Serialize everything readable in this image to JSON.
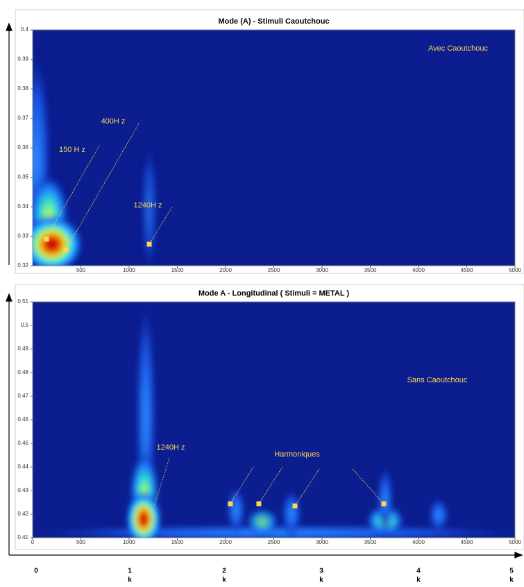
{
  "chart_data": [
    {
      "type": "heatmap",
      "title": "Mode (A) - Stimuli Caoutchouc",
      "xlim": [
        0,
        5000
      ],
      "xticks": [
        500,
        1000,
        1500,
        2000,
        2500,
        3000,
        3500,
        4000,
        4500,
        5000
      ],
      "ylim": [
        0.32,
        0.4
      ],
      "yticks": [
        0.32,
        0.33,
        0.34,
        0.35,
        0.36,
        0.37,
        0.38,
        0.39,
        0.4
      ],
      "background": "#0b1d8f",
      "annotations": [
        "Avec Caoutchouc",
        "400H z",
        "150 H z",
        "1240H z"
      ],
      "markers": {
        "x": [
          144,
          345,
          1209
        ],
        "y": [
          0.329,
          0.3254,
          0.3273
        ],
        "color": "#ffd84a"
      }
    },
    {
      "type": "heatmap",
      "title": "Mode A - Longitudinal  ( Stimuli = METAL )",
      "xlim": [
        0,
        5000
      ],
      "xticks": [
        0,
        500,
        1000,
        1500,
        2000,
        2500,
        3000,
        3500,
        4000,
        4500,
        5000
      ],
      "ylim": [
        0.41,
        0.51
      ],
      "yticks": [
        0.41,
        0.42,
        0.43,
        0.44,
        0.45,
        0.46,
        0.47,
        0.48,
        0.49,
        0.5,
        0.51
      ],
      "background": "#0b1d8f",
      "annotations": [
        "Sans Caoutchouc",
        "1240H z",
        "Harmoniques"
      ],
      "markers": {
        "x": [
          2050,
          2345,
          2719,
          3640
        ],
        "y": [
          0.4244,
          0.4244,
          0.4235,
          0.4244
        ],
        "color": "#ffd84a"
      }
    }
  ],
  "outer_axis": {
    "ticks": [
      "0",
      "1",
      "2",
      "3",
      "4",
      "5"
    ],
    "unit": "k"
  }
}
